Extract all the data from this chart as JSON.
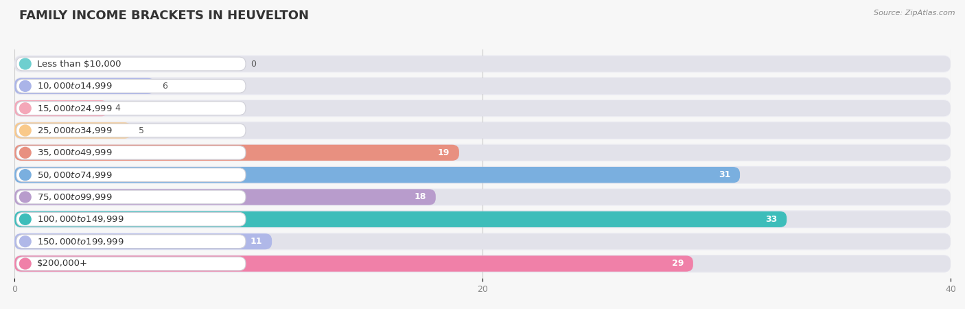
{
  "title": "FAMILY INCOME BRACKETS IN HEUVELTON",
  "source": "Source: ZipAtlas.com",
  "categories": [
    "Less than $10,000",
    "$10,000 to $14,999",
    "$15,000 to $24,999",
    "$25,000 to $34,999",
    "$35,000 to $49,999",
    "$50,000 to $74,999",
    "$75,000 to $99,999",
    "$100,000 to $149,999",
    "$150,000 to $199,999",
    "$200,000+"
  ],
  "values": [
    0,
    6,
    4,
    5,
    19,
    31,
    18,
    33,
    11,
    29
  ],
  "bar_colors": [
    "#6ecfcf",
    "#aab4e8",
    "#f4a7b8",
    "#f9c98a",
    "#e89080",
    "#7aafdf",
    "#b89ccc",
    "#3dbdba",
    "#b0b8e8",
    "#f080a8"
  ],
  "bg_row_colors": [
    "#f0f0f5",
    "#e8e8f0"
  ],
  "bar_bg_color": "#e2e2ea",
  "xlim": [
    0,
    40
  ],
  "xticks": [
    0,
    20,
    40
  ],
  "title_fontsize": 13,
  "label_fontsize": 9.5,
  "value_fontsize": 9
}
